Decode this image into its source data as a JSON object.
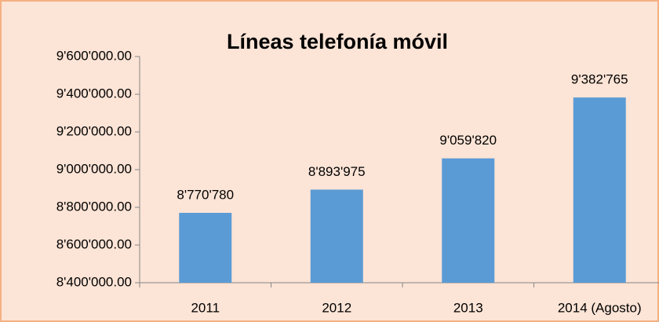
{
  "chart_data": {
    "type": "bar",
    "title": "Líneas telefonía móvil",
    "categories": [
      "2011",
      "2012",
      "2013",
      "2014 (Agosto)"
    ],
    "values": [
      8770780,
      8893975,
      9059820,
      9382765
    ],
    "value_labels": [
      "8'770'780",
      "8'893'975",
      "9'059'820",
      "9'382'765"
    ],
    "color": "#5b9bd5",
    "ylim": [
      8400000,
      9600000
    ],
    "yticks": [
      {
        "value": 8400000,
        "label": "8'400'000.00"
      },
      {
        "value": 8600000,
        "label": "8'600'000.00"
      },
      {
        "value": 8800000,
        "label": "8'800'000.00"
      },
      {
        "value": 9000000,
        "label": "9'000'000.00"
      },
      {
        "value": 9200000,
        "label": "9'200'000.00"
      },
      {
        "value": 9400000,
        "label": "9'400'000.00"
      },
      {
        "value": 9600000,
        "label": "9'600'000.00"
      }
    ],
    "grid": false
  }
}
